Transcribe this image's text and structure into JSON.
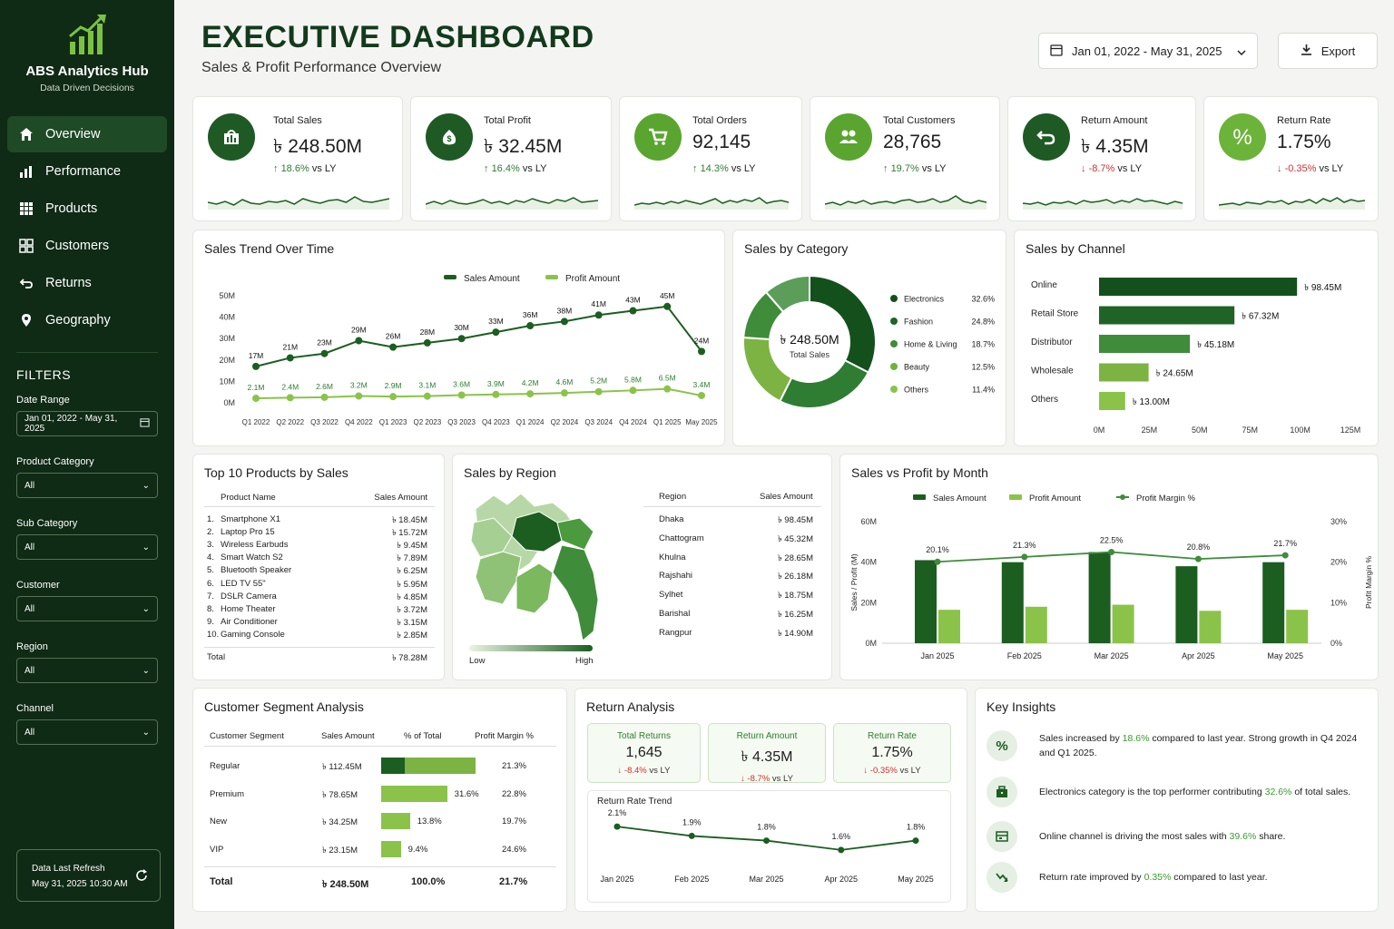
{
  "sidebar": {
    "app_name": "ABS Analytics Hub",
    "tagline": "Data Driven Decisions",
    "nav": [
      {
        "label": "Overview",
        "icon": "home-icon"
      },
      {
        "label": "Performance",
        "icon": "bar-chart-icon"
      },
      {
        "label": "Products",
        "icon": "grid-icon"
      },
      {
        "label": "Customers",
        "icon": "users-icon"
      },
      {
        "label": "Returns",
        "icon": "return-icon"
      },
      {
        "label": "Geography",
        "icon": "location-pin-icon"
      }
    ],
    "filters_title": "FILTERS",
    "date_range_label": "Date Range",
    "date_range_value": "Jan 01, 2022 - May 31, 2025",
    "filters": [
      {
        "label": "Product Category",
        "value": "All"
      },
      {
        "label": "Sub Category",
        "value": "All"
      },
      {
        "label": "Customer",
        "value": "All"
      },
      {
        "label": "Region",
        "value": "All"
      },
      {
        "label": "Channel",
        "value": "All"
      }
    ],
    "refresh_label": "Data Last Refresh",
    "refresh_time": "May 31, 2025 10:30 AM"
  },
  "header": {
    "title": "EXECUTIVE DASHBOARD",
    "subtitle": "Sales & Profit Performance Overview",
    "date_range": "Jan 01, 2022 - May 31, 2025",
    "export_label": "Export"
  },
  "kpis": [
    {
      "title": "Total Sales",
      "value": "৳ 248.50M",
      "change": "18.6%",
      "suffix": "vs LY",
      "dir": "up",
      "icon": "sales-bag-icon",
      "color": "#1f5a25"
    },
    {
      "title": "Total Profit",
      "value": "৳ 32.45M",
      "change": "16.4%",
      "suffix": "vs LY",
      "dir": "up",
      "icon": "money-bag-icon",
      "color": "#1f5a25"
    },
    {
      "title": "Total Orders",
      "value": "92,145",
      "change": "14.3%",
      "suffix": "vs LY",
      "dir": "up",
      "icon": "cart-icon",
      "color": "#5aa52f"
    },
    {
      "title": "Total Customers",
      "value": "28,765",
      "change": "19.7%",
      "suffix": "vs LY",
      "dir": "up",
      "icon": "users-icon",
      "color": "#5aa52f"
    },
    {
      "title": "Return Amount",
      "value": "৳ 4.35M",
      "change": "-8.7%",
      "suffix": "vs LY",
      "dir": "down",
      "icon": "return-icon",
      "color": "#1f5a25"
    },
    {
      "title": "Return Rate",
      "value": "1.75%",
      "change": "-0.35%",
      "suffix": "vs LY",
      "dir": "down",
      "icon": "percent-icon",
      "color": "#6cb33a"
    }
  ],
  "sales_trend": {
    "title": "Sales Trend Over Time",
    "legend": [
      "Sales Amount",
      "Profit Amount"
    ],
    "y_ticks": [
      "50M",
      "40M",
      "30M",
      "20M",
      "10M",
      "0M"
    ]
  },
  "sales_category": {
    "title": "Sales by Category",
    "center_value": "৳ 248.50M",
    "center_label": "Total Sales"
  },
  "sales_channel": {
    "title": "Sales by Channel",
    "x_ticks": [
      "0M",
      "25M",
      "50M",
      "75M",
      "100M",
      "125M"
    ]
  },
  "top_products": {
    "title": "Top 10 Products by Sales",
    "col1": "Product Name",
    "col2": "Sales Amount",
    "rows": [
      {
        "n": "1.",
        "name": "Smartphone X1",
        "v": "৳ 18.45M"
      },
      {
        "n": "2.",
        "name": "Laptop Pro 15",
        "v": "৳ 15.72M"
      },
      {
        "n": "3.",
        "name": "Wireless Earbuds",
        "v": "৳ 9.45M"
      },
      {
        "n": "4.",
        "name": "Smart Watch S2",
        "v": "৳ 7.89M"
      },
      {
        "n": "5.",
        "name": "Bluetooth Speaker",
        "v": "৳ 6.25M"
      },
      {
        "n": "6.",
        "name": "LED TV 55\"",
        "v": "৳ 5.95M"
      },
      {
        "n": "7.",
        "name": "DSLR Camera",
        "v": "৳ 4.85M"
      },
      {
        "n": "8.",
        "name": "Home Theater",
        "v": "৳ 3.72M"
      },
      {
        "n": "9.",
        "name": "Air Conditioner",
        "v": "৳ 3.15M"
      },
      {
        "n": "10.",
        "name": "Gaming Console",
        "v": "৳ 2.85M"
      }
    ],
    "total_label": "Total",
    "total_value": "৳ 78.28M"
  },
  "region": {
    "title": "Sales by Region",
    "col1": "Region",
    "col2": "Sales Amount",
    "rows": [
      {
        "name": "Dhaka",
        "v": "৳ 98.45M"
      },
      {
        "name": "Chattogram",
        "v": "৳ 45.32M"
      },
      {
        "name": "Khulna",
        "v": "৳ 28.65M"
      },
      {
        "name": "Rajshahi",
        "v": "৳ 26.18M"
      },
      {
        "name": "Sylhet",
        "v": "৳ 18.75M"
      },
      {
        "name": "Barishal",
        "v": "৳ 16.25M"
      },
      {
        "name": "Rangpur",
        "v": "৳ 14.90M"
      }
    ],
    "legend_low": "Low",
    "legend_high": "High"
  },
  "sales_profit_month": {
    "title": "Sales vs Profit by Month",
    "legend": [
      "Sales Amount",
      "Profit Amount",
      "Profit Margin %"
    ],
    "y_left_label": "Sales / Profit (M)",
    "y_right_label": "Profit Margin %",
    "y_left_ticks": [
      "60M",
      "40M",
      "20M",
      "0M"
    ],
    "y_right_ticks": [
      "30%",
      "20%",
      "10%",
      "0%"
    ]
  },
  "segments": {
    "title": "Customer Segment Analysis",
    "headers": [
      "Customer Segment",
      "Sales Amount",
      "% of Total",
      "Profit Margin %"
    ],
    "rows": [
      {
        "seg": "Regular",
        "sales": "৳ 112.45M",
        "pct": "45.3%",
        "pct_num": 45.3,
        "margin": "21.3%"
      },
      {
        "seg": "Premium",
        "sales": "৳ 78.65M",
        "pct": "31.6%",
        "pct_num": 31.6,
        "margin": "22.8%"
      },
      {
        "seg": "New",
        "sales": "৳ 34.25M",
        "pct": "13.8%",
        "pct_num": 13.8,
        "margin": "19.7%"
      },
      {
        "seg": "VIP",
        "sales": "৳ 23.15M",
        "pct": "9.4%",
        "pct_num": 9.4,
        "margin": "24.6%"
      }
    ],
    "total": {
      "seg": "Total",
      "sales": "৳ 248.50M",
      "pct": "100.0%",
      "margin": "21.7%"
    }
  },
  "returns": {
    "title": "Return Analysis",
    "boxes": [
      {
        "label": "Total Returns",
        "value": "1,645",
        "change": "-8.4%",
        "suffix": "vs LY"
      },
      {
        "label": "Return Amount",
        "value": "৳ 4.35M",
        "change": "-8.7%",
        "suffix": "vs LY"
      },
      {
        "label": "Return Rate",
        "value": "1.75%",
        "change": "-0.35%",
        "suffix": "vs LY"
      }
    ],
    "trend_title": "Return Rate Trend"
  },
  "insights": {
    "title": "Key Insights",
    "items": [
      {
        "icon": "percent-icon",
        "pre": "Sales increased by ",
        "hl": "18.6%",
        "post": " compared to last year. Strong growth in Q4 2024 and Q1 2025."
      },
      {
        "icon": "briefcase-icon",
        "pre": "Electronics category is the top performer contributing ",
        "hl": "32.6%",
        "post": " of total sales."
      },
      {
        "icon": "store-icon",
        "pre": "Online channel is driving the most sales with ",
        "hl": "39.6%",
        "post": " share."
      },
      {
        "icon": "return-trend-icon",
        "pre": "Return rate improved by ",
        "hl": "0.35%",
        "post": " compared to last year."
      }
    ]
  },
  "chart_data": [
    {
      "type": "line",
      "title": "Sales Trend Over Time",
      "x": [
        "Q1 2022",
        "Q2 2022",
        "Q3 2022",
        "Q4 2022",
        "Q1 2023",
        "Q2 2023",
        "Q3 2023",
        "Q4 2023",
        "Q1 2024",
        "Q2 2024",
        "Q3 2024",
        "Q4 2024",
        "Q1 2025",
        "May 2025"
      ],
      "ylim": [
        0,
        50
      ],
      "series": [
        {
          "name": "Sales Amount",
          "values": [
            17,
            21,
            23,
            29,
            26,
            28,
            30,
            33,
            36,
            38,
            41,
            43,
            45,
            24
          ],
          "labels": [
            "17M",
            "21M",
            "23M",
            "29M",
            "26M",
            "28M",
            "30M",
            "33M",
            "36M",
            "38M",
            "41M",
            "43M",
            "45M",
            "24M"
          ],
          "color": "#1b5e20"
        },
        {
          "name": "Profit Amount",
          "values": [
            2.1,
            2.4,
            2.6,
            3.2,
            2.9,
            3.1,
            3.6,
            3.9,
            4.2,
            4.6,
            5.2,
            5.8,
            6.5,
            3.4
          ],
          "labels": [
            "2.1M",
            "2.4M",
            "2.6M",
            "3.2M",
            "2.9M",
            "3.1M",
            "3.6M",
            "3.9M",
            "4.2M",
            "4.6M",
            "5.2M",
            "5.8M",
            "6.5M",
            "3.4M"
          ],
          "color": "#8bc34a"
        }
      ]
    },
    {
      "type": "pie",
      "title": "Sales by Category",
      "categories": [
        "Electronics",
        "Fashion",
        "Home & Living",
        "Beauty",
        "Others"
      ],
      "values": [
        32.6,
        24.8,
        18.7,
        12.5,
        11.4
      ],
      "labels": [
        "32.6%",
        "24.8%",
        "18.7%",
        "12.5%",
        "11.4%"
      ],
      "colors": [
        "#14501c",
        "#2e7d32",
        "#7cb342",
        "#3f8c3a",
        "#5d9d5a"
      ]
    },
    {
      "type": "bar",
      "title": "Sales by Channel",
      "categories": [
        "Online",
        "Retail Store",
        "Distributor",
        "Wholesale",
        "Others"
      ],
      "values": [
        98.45,
        67.32,
        45.18,
        24.65,
        13.0
      ],
      "labels": [
        "৳ 98.45M",
        "৳ 67.32M",
        "৳ 45.18M",
        "৳ 24.65M",
        "৳ 13.00M"
      ],
      "xlim": [
        0,
        125
      ],
      "colors": [
        "#14501c",
        "#1f6426",
        "#3f8c3a",
        "#7cb342",
        "#8bc34a"
      ]
    },
    {
      "type": "bar",
      "title": "Sales vs Profit by Month",
      "categories": [
        "Jan 2025",
        "Feb 2025",
        "Mar 2025",
        "Apr 2025",
        "May 2025"
      ],
      "ylim": [
        0,
        60
      ],
      "series": [
        {
          "name": "Sales Amount",
          "values": [
            41,
            40,
            45,
            38,
            40
          ]
        },
        {
          "name": "Profit Amount",
          "values": [
            16.5,
            18,
            19,
            16,
            16.5
          ]
        },
        {
          "name": "Profit Margin %",
          "values": [
            20.1,
            21.3,
            22.5,
            20.8,
            21.7
          ],
          "labels": [
            "20.1%",
            "21.3%",
            "22.5%",
            "20.8%",
            "21.7%"
          ],
          "axis": "right",
          "ylim": [
            0,
            30
          ]
        }
      ]
    },
    {
      "type": "line",
      "title": "Return Rate Trend",
      "x": [
        "Jan 2025",
        "Feb 2025",
        "Mar 2025",
        "Apr 2025",
        "May 2025"
      ],
      "series": [
        {
          "name": "Return Rate",
          "values": [
            2.1,
            1.9,
            1.8,
            1.6,
            1.8
          ],
          "labels": [
            "2.1%",
            "1.9%",
            "1.8%",
            "1.6%",
            "1.8%"
          ]
        }
      ]
    }
  ]
}
